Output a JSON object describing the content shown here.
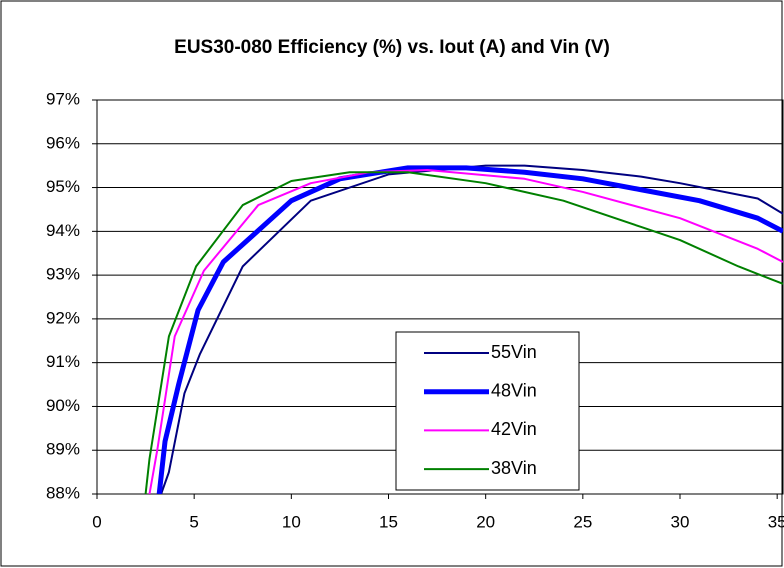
{
  "chart_data": {
    "type": "line",
    "title": "EUS30-080 Efficiency (%) vs. Iout (A) and Vin (V)",
    "xlim": [
      0,
      35.3
    ],
    "ylim": [
      88,
      97
    ],
    "xticks": [
      0,
      5,
      10,
      15,
      20,
      25,
      30,
      35
    ],
    "yticks": [
      {
        "value": 88,
        "label": "88%"
      },
      {
        "value": 89,
        "label": "89%"
      },
      {
        "value": 90,
        "label": "90%"
      },
      {
        "value": 91,
        "label": "91%"
      },
      {
        "value": 92,
        "label": "92%"
      },
      {
        "value": 93,
        "label": "93%"
      },
      {
        "value": 94,
        "label": "94%"
      },
      {
        "value": 95,
        "label": "95%"
      },
      {
        "value": 96,
        "label": "96%"
      },
      {
        "value": 97,
        "label": "97%"
      }
    ],
    "grid": true,
    "series": [
      {
        "name": "55Vin",
        "color": "#000080",
        "width": 2,
        "x": [
          3.3,
          3.7,
          4.5,
          5.3,
          7.5,
          11,
          15,
          20,
          22,
          25,
          28,
          30,
          34,
          35.3
        ],
        "values": [
          88,
          88.5,
          90.3,
          91.2,
          93.2,
          94.7,
          95.3,
          95.5,
          95.5,
          95.4,
          95.25,
          95.1,
          94.75,
          94.4
        ]
      },
      {
        "name": "48Vin",
        "color": "#0000ff",
        "width": 5,
        "x": [
          3.2,
          3.5,
          4.2,
          5.2,
          6.5,
          8,
          10,
          12.5,
          16,
          19,
          22,
          25,
          28,
          31,
          34,
          35.3
        ],
        "values": [
          88,
          89.2,
          90.5,
          92.2,
          93.3,
          93.9,
          94.7,
          95.2,
          95.45,
          95.45,
          95.35,
          95.2,
          94.95,
          94.7,
          94.3,
          94.0
        ]
      },
      {
        "name": "42Vin",
        "color": "#ff00ff",
        "width": 2,
        "x": [
          2.7,
          3.1,
          4,
          5.5,
          8.3,
          11,
          14,
          17,
          22,
          25,
          30,
          34,
          35.3
        ],
        "values": [
          88,
          89,
          91.6,
          93.1,
          94.6,
          95.1,
          95.35,
          95.4,
          95.2,
          94.9,
          94.3,
          93.6,
          93.3
        ]
      },
      {
        "name": "38Vin",
        "color": "#008000",
        "width": 2,
        "x": [
          2.5,
          2.7,
          3.7,
          5.1,
          7.5,
          10,
          13,
          16,
          20,
          24,
          28,
          30,
          33,
          35.3
        ],
        "values": [
          88,
          88.8,
          91.6,
          93.2,
          94.6,
          95.15,
          95.35,
          95.35,
          95.1,
          94.7,
          94.1,
          93.8,
          93.2,
          92.8
        ]
      }
    ]
  }
}
